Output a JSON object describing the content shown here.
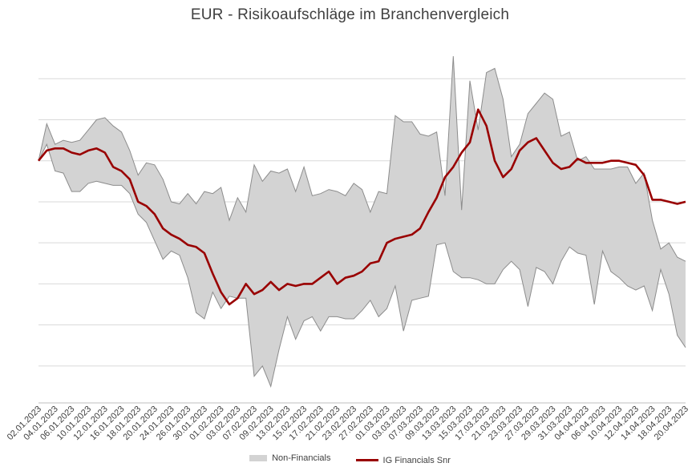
{
  "colors": {
    "band": "#d3d3d3",
    "band_edge": "#8c8c8c",
    "line": "#990000",
    "grid": "#d9d9d9",
    "text": "#404040"
  },
  "chart_data": {
    "type": "area",
    "title": "EUR - Risikoaufschläge  im Branchenvergleich",
    "xlabel": "",
    "ylabel": "",
    "ylim": [
      -5.9,
      3.0
    ],
    "grid": true,
    "legend_position": "bottom",
    "x_tick_labels": [
      "02.01.2023",
      "04.01.2023",
      "06.01.2023",
      "10.01.2023",
      "12.01.2023",
      "16.01.2023",
      "18.01.2023",
      "20.01.2023",
      "24.01.2023",
      "26.01.2023",
      "30.01.2023",
      "01.02.2023",
      "03.02.2023",
      "07.02.2023",
      "09.02.2023",
      "13.02.2023",
      "15.02.2023",
      "17.02.2023",
      "21.02.2023",
      "23.02.2023",
      "27.02.2023",
      "01.03.2023",
      "03.03.2023",
      "07.03.2023",
      "09.03.2023",
      "13.03.2023",
      "15.03.2023",
      "17.03.2023",
      "21.03.2023",
      "23.03.2023",
      "27.03.2023",
      "29.03.2023",
      "31.03.2023",
      "04.04.2023",
      "06.04.2023",
      "10.04.2023",
      "12.04.2023",
      "14.04.2023",
      "18.04.2023",
      "20.04.2023"
    ],
    "series": [
      {
        "name": "Non-Financials",
        "kind": "band",
        "upper": [
          0.0,
          0.9,
          0.4,
          0.5,
          0.45,
          0.5,
          0.75,
          1.0,
          1.05,
          0.85,
          0.7,
          0.25,
          -0.35,
          -0.05,
          -0.1,
          -0.45,
          -1.0,
          -1.05,
          -0.8,
          -1.05,
          -0.75,
          -0.8,
          -0.65,
          -1.45,
          -0.9,
          -1.25,
          -0.1,
          -0.5,
          -0.25,
          -0.3,
          -0.2,
          -0.75,
          -0.15,
          -0.85,
          -0.8,
          -0.7,
          -0.75,
          -0.85,
          -0.55,
          -0.7,
          -1.25,
          -0.75,
          -0.8,
          1.1,
          0.95,
          0.95,
          0.65,
          0.6,
          0.7,
          -0.85,
          2.55,
          -1.2,
          1.95,
          0.75,
          2.15,
          2.25,
          1.5,
          0.1,
          0.4,
          1.15,
          1.4,
          1.65,
          1.5,
          0.6,
          0.7,
          0.0,
          0.1,
          -0.2,
          -0.2,
          -0.2,
          -0.15,
          -0.15,
          -0.55,
          -0.3,
          -1.45,
          -2.15,
          -2.0,
          -2.35,
          -2.45
        ],
        "lower": [
          0.0,
          0.4,
          -0.25,
          -0.3,
          -0.75,
          -0.75,
          -0.55,
          -0.5,
          -0.55,
          -0.6,
          -0.6,
          -0.8,
          -1.3,
          -1.5,
          -1.95,
          -2.4,
          -2.2,
          -2.3,
          -2.85,
          -3.7,
          -3.85,
          -3.2,
          -3.6,
          -3.3,
          -3.35,
          -3.35,
          -5.25,
          -5.0,
          -5.5,
          -4.6,
          -3.8,
          -4.35,
          -3.9,
          -3.8,
          -4.15,
          -3.8,
          -3.8,
          -3.85,
          -3.85,
          -3.65,
          -3.4,
          -3.8,
          -3.6,
          -3.05,
          -4.15,
          -3.4,
          -3.35,
          -3.3,
          -2.05,
          -2.0,
          -2.7,
          -2.85,
          -2.85,
          -2.9,
          -3.0,
          -3.0,
          -2.65,
          -2.45,
          -2.65,
          -3.55,
          -2.6,
          -2.7,
          -3.0,
          -2.45,
          -2.1,
          -2.25,
          -2.3,
          -3.5,
          -2.2,
          -2.7,
          -2.85,
          -3.05,
          -3.15,
          -3.05,
          -3.65,
          -2.65,
          -3.25,
          -4.25,
          -4.55
        ]
      },
      {
        "name": "IG Financials Snr",
        "kind": "line",
        "values": [
          0.0,
          0.25,
          0.3,
          0.3,
          0.2,
          0.15,
          0.25,
          0.3,
          0.2,
          -0.15,
          -0.25,
          -0.45,
          -1.0,
          -1.1,
          -1.3,
          -1.65,
          -1.8,
          -1.9,
          -2.05,
          -2.1,
          -2.25,
          -2.75,
          -3.2,
          -3.5,
          -3.35,
          -3.0,
          -3.25,
          -3.15,
          -2.95,
          -3.15,
          -3.0,
          -3.05,
          -3.0,
          -3.0,
          -2.85,
          -2.7,
          -3.0,
          -2.85,
          -2.8,
          -2.7,
          -2.5,
          -2.45,
          -2.0,
          -1.9,
          -1.85,
          -1.8,
          -1.65,
          -1.25,
          -0.9,
          -0.4,
          -0.15,
          0.2,
          0.45,
          1.25,
          0.85,
          0.0,
          -0.4,
          -0.2,
          0.25,
          0.45,
          0.55,
          0.25,
          -0.05,
          -0.2,
          -0.15,
          0.05,
          -0.05,
          -0.05,
          -0.05,
          0.0,
          0.0,
          -0.05,
          -0.1,
          -0.35,
          -0.95,
          -0.95,
          -1.0,
          -1.05,
          -1.0
        ]
      }
    ]
  }
}
